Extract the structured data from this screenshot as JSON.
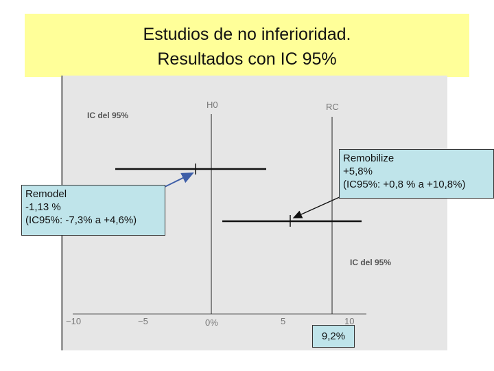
{
  "title": {
    "line1": "Estudios de no inferioridad.",
    "line2": "Resultados con IC 95%"
  },
  "chart_data": {
    "type": "forest",
    "x_ticks": [
      "−10",
      "−5",
      "0%",
      "5",
      "10"
    ],
    "xlim": [
      -10,
      10
    ],
    "reference_lines": [
      {
        "label": "H0",
        "x": 0
      },
      {
        "label": "RC",
        "x": 9.2
      }
    ],
    "axis_labels": [
      "IC del 95%",
      "IC del 95%"
    ],
    "series": [
      {
        "name": "Remodel",
        "estimate": -1.13,
        "ci": [
          -7.3,
          4.6
        ]
      },
      {
        "name": "Remobilize",
        "estimate": 5.8,
        "ci": [
          0.8,
          10.8
        ]
      }
    ]
  },
  "callouts": {
    "remodel": {
      "line1": "Remodel",
      "line2": "-1,13 %",
      "line3": "(IC95%: -7,3% a +4,6%)"
    },
    "remobilize": {
      "line1": "Remobilize",
      "line2": "+5,8%",
      "line3": "(IC95%: +0,8 % a +10,8%)"
    },
    "margin_value": "9,2%"
  },
  "colors": {
    "title_bg": "#ffff99",
    "panel_bg": "#e6e6e6",
    "callout_bg": "#bfe4ea",
    "remodel_arrow": "#3f5fa8"
  }
}
